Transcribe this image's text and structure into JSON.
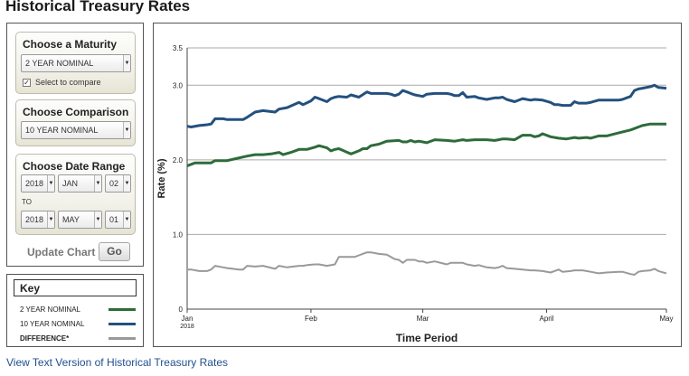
{
  "page": {
    "title": "Historical Treasury Rates"
  },
  "controls": {
    "maturity": {
      "title": "Choose a Maturity",
      "selected": "2 YEAR NOMINAL",
      "checkbox_label": "Select to compare",
      "checked": true
    },
    "comparison": {
      "title": "Choose Comparison",
      "selected": "10 YEAR NOMINAL"
    },
    "date_range": {
      "title": "Choose Date Range",
      "from": {
        "year": "2018",
        "month": "JAN",
        "day": "02"
      },
      "to_label": "TO",
      "to": {
        "year": "2018",
        "month": "MAY",
        "day": "01"
      }
    },
    "update_label": "Update Chart",
    "go_label": "Go"
  },
  "key": {
    "title": "Key",
    "items": [
      {
        "label": "2 YEAR NOMINAL",
        "color": "#2e6b3a"
      },
      {
        "label": "10 YEAR NOMINAL",
        "color": "#24507e"
      },
      {
        "label": "DIFFERENCE*",
        "color": "#999999"
      }
    ]
  },
  "chart_data": {
    "type": "line",
    "xlabel": "Time Period",
    "ylabel": "Rate (%)",
    "ylim": [
      0,
      3.5
    ],
    "yticks": [
      0,
      1.0,
      2.0,
      3.0,
      3.5
    ],
    "ytick_labels": [
      "0",
      "1.0",
      "2.0",
      "3.0",
      "3.5"
    ],
    "xlim": [
      0,
      120
    ],
    "xticks": [
      {
        "day": 0,
        "label": "Jan",
        "sublabel": "2018"
      },
      {
        "day": 31,
        "label": "Feb",
        "sublabel": ""
      },
      {
        "day": 59,
        "label": "Mar",
        "sublabel": ""
      },
      {
        "day": 90,
        "label": "April",
        "sublabel": ""
      },
      {
        "day": 120,
        "label": "May",
        "sublabel": ""
      }
    ],
    "grid": "horizontal",
    "series": [
      {
        "name": "10 YEAR NOMINAL",
        "color": "#24507e",
        "x": [
          0,
          1,
          3,
          5,
          6,
          7,
          9,
          10,
          14,
          15,
          17,
          19,
          22,
          23,
          25,
          28,
          29,
          31,
          32,
          33,
          35,
          36,
          37,
          38,
          40,
          41,
          43,
          45,
          46,
          48,
          50,
          51,
          52,
          53,
          54,
          55,
          56,
          57,
          58,
          59,
          60,
          62,
          65,
          66,
          67,
          68,
          69,
          70,
          72,
          73,
          75,
          77,
          78,
          79,
          80,
          82,
          84,
          86,
          87,
          89,
          91,
          92,
          93,
          94,
          96,
          97,
          98,
          100,
          101,
          103,
          105,
          108,
          109,
          111,
          112,
          113,
          114,
          116,
          117,
          118,
          120
        ],
        "y": [
          2.45,
          2.44,
          2.46,
          2.47,
          2.48,
          2.55,
          2.55,
          2.54,
          2.54,
          2.57,
          2.64,
          2.66,
          2.64,
          2.68,
          2.7,
          2.77,
          2.74,
          2.79,
          2.84,
          2.82,
          2.78,
          2.82,
          2.84,
          2.85,
          2.84,
          2.87,
          2.84,
          2.91,
          2.89,
          2.89,
          2.89,
          2.88,
          2.86,
          2.88,
          2.93,
          2.91,
          2.89,
          2.87,
          2.86,
          2.85,
          2.88,
          2.89,
          2.89,
          2.88,
          2.86,
          2.86,
          2.9,
          2.84,
          2.85,
          2.83,
          2.81,
          2.83,
          2.83,
          2.84,
          2.81,
          2.78,
          2.82,
          2.8,
          2.81,
          2.8,
          2.77,
          2.74,
          2.74,
          2.73,
          2.73,
          2.78,
          2.76,
          2.76,
          2.77,
          2.8,
          2.8,
          2.8,
          2.81,
          2.85,
          2.93,
          2.95,
          2.96,
          2.98,
          3.0,
          2.97,
          2.96
        ]
      },
      {
        "name": "2 YEAR NOMINAL",
        "color": "#2e6b3a",
        "x": [
          0,
          1,
          2,
          6,
          7,
          9,
          10,
          15,
          17,
          19,
          21,
          23,
          24,
          26,
          28,
          30,
          32,
          33,
          35,
          36,
          37,
          38,
          41,
          42,
          43,
          44,
          45,
          46,
          48,
          50,
          53,
          54,
          55,
          56,
          57,
          58,
          60,
          62,
          65,
          67,
          69,
          70,
          72,
          75,
          77,
          78,
          79,
          80,
          82,
          84,
          86,
          87,
          88,
          89,
          91,
          93,
          95,
          97,
          98,
          100,
          101,
          103,
          105,
          108,
          111,
          112,
          113,
          114,
          116,
          118,
          120
        ],
        "y": [
          1.92,
          1.94,
          1.96,
          1.96,
          1.99,
          1.99,
          1.99,
          2.05,
          2.07,
          2.07,
          2.08,
          2.1,
          2.07,
          2.1,
          2.14,
          2.14,
          2.17,
          2.19,
          2.16,
          2.12,
          2.14,
          2.15,
          2.08,
          2.1,
          2.12,
          2.15,
          2.15,
          2.19,
          2.21,
          2.25,
          2.26,
          2.24,
          2.24,
          2.26,
          2.24,
          2.25,
          2.23,
          2.27,
          2.26,
          2.25,
          2.27,
          2.26,
          2.27,
          2.27,
          2.26,
          2.27,
          2.28,
          2.28,
          2.27,
          2.33,
          2.33,
          2.31,
          2.32,
          2.35,
          2.31,
          2.29,
          2.28,
          2.3,
          2.29,
          2.3,
          2.29,
          2.32,
          2.32,
          2.36,
          2.4,
          2.42,
          2.44,
          2.46,
          2.48,
          2.48,
          2.48
        ]
      },
      {
        "name": "DIFFERENCE*",
        "color": "#999999",
        "x": [
          0,
          1,
          3,
          5,
          6,
          7,
          9,
          10,
          13,
          14,
          15,
          17,
          19,
          22,
          23,
          25,
          28,
          29,
          30,
          32,
          33,
          35,
          37,
          38,
          40,
          42,
          43,
          45,
          46,
          48,
          50,
          52,
          53,
          54,
          55,
          57,
          58,
          59,
          60,
          62,
          65,
          66,
          68,
          69,
          70,
          72,
          73,
          75,
          77,
          78,
          79,
          80,
          82,
          84,
          86,
          87,
          89,
          91,
          92,
          93,
          94,
          96,
          97,
          99,
          100,
          101,
          103,
          105,
          108,
          109,
          111,
          112,
          113,
          114,
          116,
          117,
          118,
          120
        ],
        "y": [
          0.53,
          0.53,
          0.51,
          0.51,
          0.53,
          0.58,
          0.56,
          0.55,
          0.53,
          0.53,
          0.58,
          0.57,
          0.58,
          0.54,
          0.58,
          0.56,
          0.58,
          0.58,
          0.59,
          0.6,
          0.6,
          0.58,
          0.6,
          0.7,
          0.7,
          0.7,
          0.72,
          0.76,
          0.76,
          0.74,
          0.73,
          0.67,
          0.66,
          0.62,
          0.66,
          0.66,
          0.64,
          0.64,
          0.62,
          0.64,
          0.6,
          0.62,
          0.62,
          0.62,
          0.6,
          0.58,
          0.59,
          0.56,
          0.55,
          0.56,
          0.58,
          0.55,
          0.54,
          0.53,
          0.52,
          0.52,
          0.51,
          0.49,
          0.51,
          0.53,
          0.5,
          0.51,
          0.52,
          0.52,
          0.51,
          0.5,
          0.48,
          0.49,
          0.5,
          0.5,
          0.47,
          0.46,
          0.5,
          0.51,
          0.52,
          0.54,
          0.51,
          0.48
        ]
      }
    ]
  },
  "footer": {
    "link_text": "View Text Version of Historical Treasury Rates"
  }
}
